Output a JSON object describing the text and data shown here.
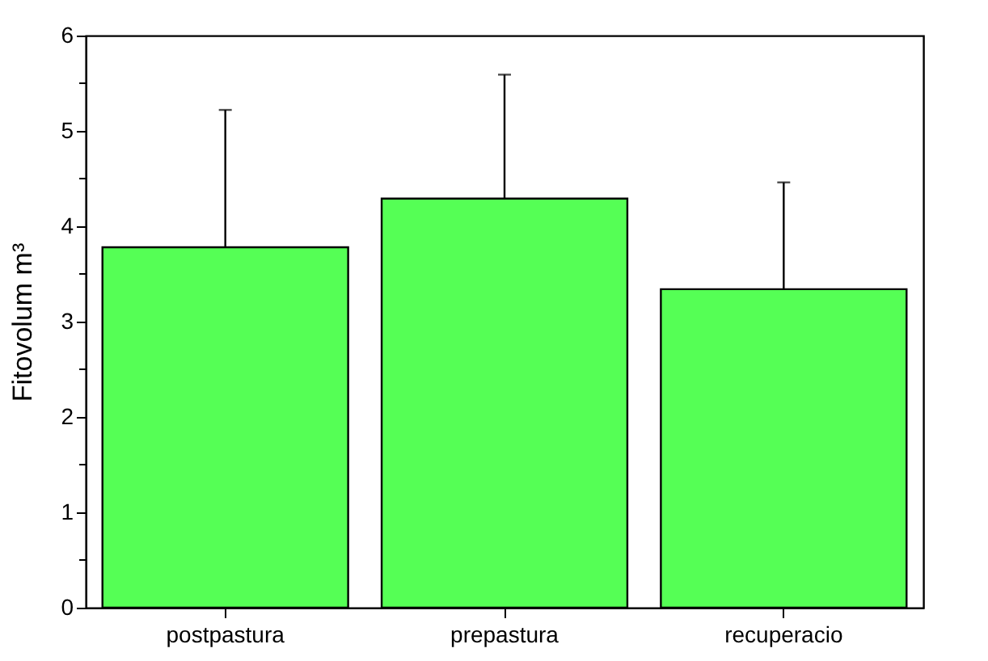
{
  "chart_data": {
    "type": "bar",
    "ylabel": "Fitovolum m³",
    "categories": [
      "postpastura",
      "prepastura",
      "recuperacio"
    ],
    "values": [
      3.78,
      4.29,
      3.34
    ],
    "errors": [
      1.44,
      1.3,
      1.12
    ],
    "color": "#55ff55",
    "ylim": [
      0,
      6
    ],
    "yticks": [
      0,
      {
        "value": 0.5,
        "label": null
      },
      1,
      {
        "value": 1.5,
        "label": null
      },
      2,
      {
        "value": 2.5,
        "label": null
      },
      3,
      {
        "value": 3.5,
        "label": null
      },
      4,
      {
        "value": 4.5,
        "label": null
      },
      5,
      {
        "value": 5.5,
        "label": null
      },
      6
    ],
    "grid": false
  }
}
